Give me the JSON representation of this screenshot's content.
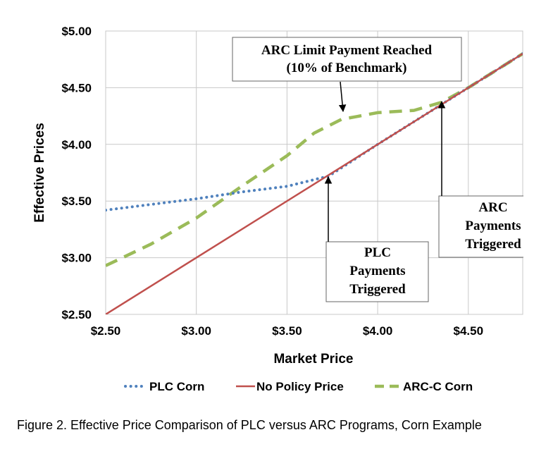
{
  "chart_data": {
    "type": "line",
    "title": "",
    "xlabel": "Market Price",
    "ylabel": "Effective Prices",
    "xlim": [
      2.5,
      4.8
    ],
    "ylim": [
      2.5,
      5.0
    ],
    "x_ticks": [
      "$2.50",
      "$3.00",
      "$3.50",
      "$4.00",
      "$4.50"
    ],
    "y_ticks": [
      "$2.50",
      "$3.00",
      "$3.50",
      "$4.00",
      "$4.50",
      "$5.00"
    ],
    "grid": true,
    "legend_position": "bottom",
    "series": [
      {
        "name": "PLC Corn",
        "style": "dotted",
        "color": "#4f81bd",
        "points": [
          [
            2.5,
            3.42
          ],
          [
            2.75,
            3.47
          ],
          [
            3.0,
            3.52
          ],
          [
            3.25,
            3.58
          ],
          [
            3.5,
            3.63
          ],
          [
            3.73,
            3.72
          ],
          [
            4.0,
            4.0
          ],
          [
            4.5,
            4.5
          ],
          [
            4.8,
            4.8
          ]
        ]
      },
      {
        "name": "No Policy Price",
        "style": "solid",
        "color": "#c0504d",
        "points": [
          [
            2.5,
            2.5
          ],
          [
            4.8,
            4.8
          ]
        ]
      },
      {
        "name": "ARC-C Corn",
        "style": "dashed",
        "color": "#9bbb59",
        "points": [
          [
            2.5,
            2.93
          ],
          [
            2.75,
            3.12
          ],
          [
            3.0,
            3.35
          ],
          [
            3.25,
            3.63
          ],
          [
            3.5,
            3.9
          ],
          [
            3.65,
            4.1
          ],
          [
            3.8,
            4.22
          ],
          [
            4.0,
            4.28
          ],
          [
            4.2,
            4.3
          ],
          [
            4.35,
            4.37
          ],
          [
            4.5,
            4.5
          ],
          [
            4.8,
            4.8
          ]
        ]
      }
    ],
    "annotations": [
      {
        "id": "arc-limit",
        "lines": [
          "ARC Limit Payment Reached",
          "(10% of Benchmark)"
        ],
        "arrow_to": [
          3.8,
          4.28
        ]
      },
      {
        "id": "plc-triggered",
        "lines": [
          "PLC",
          "Payments",
          "Triggered"
        ],
        "arrow_to": [
          3.73,
          3.73
        ]
      },
      {
        "id": "arc-triggered",
        "lines": [
          "ARC",
          "Payments",
          "Triggered"
        ],
        "arrow_to": [
          4.35,
          4.37
        ]
      }
    ]
  },
  "caption": "Figure 2. Effective Price Comparison of PLC versus ARC Programs, Corn Example"
}
